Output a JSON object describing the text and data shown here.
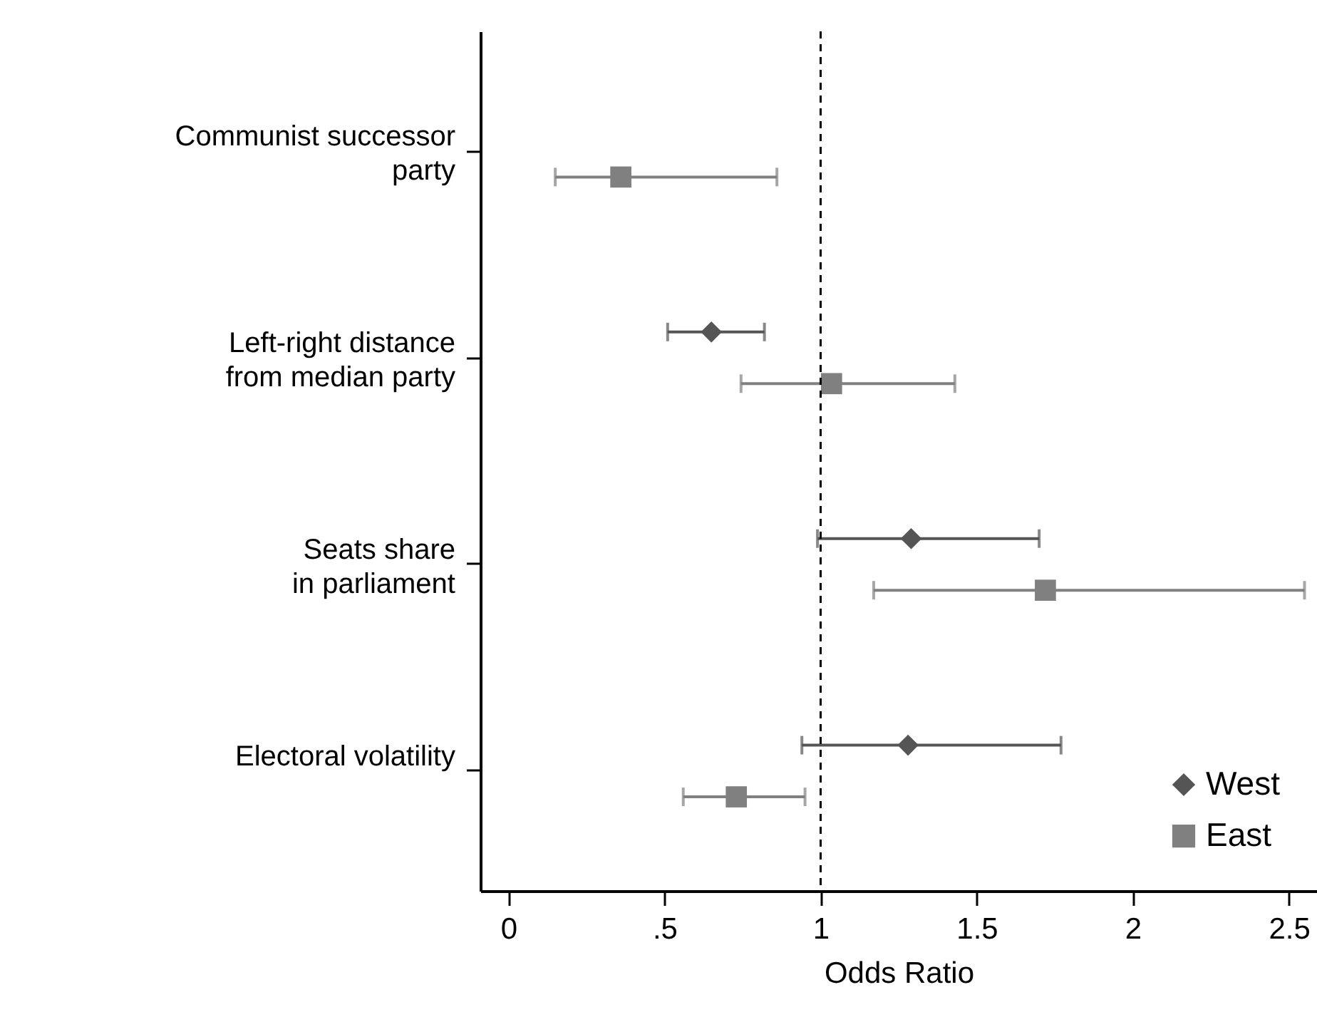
{
  "chart_data": {
    "type": "scatter",
    "orientation": "horizontal",
    "xlabel": "Odds Ratio",
    "categories": [
      "Communist successor\nparty",
      "Left-right distance\nfrom median party",
      "Seats share\nin parliament",
      "Electoral volatility"
    ],
    "series": [
      {
        "name": "West",
        "color": "#555555",
        "marker": "diamond",
        "values": [
          null,
          0.65,
          1.29,
          1.28
        ],
        "errors": [
          null,
          [
            0.51,
            0.82
          ],
          [
            0.99,
            1.7
          ],
          [
            0.94,
            1.77
          ]
        ]
      },
      {
        "name": "East",
        "color": "#808080",
        "marker": "square",
        "values": [
          0.36,
          1.035,
          1.72,
          0.73
        ],
        "errors": [
          [
            0.15,
            0.86
          ],
          [
            0.745,
            1.43
          ],
          [
            1.17,
            2.55
          ],
          [
            0.56,
            0.95
          ]
        ]
      }
    ],
    "xlim": [
      -0.09,
      2.59
    ],
    "xticks": [
      0,
      {
        "value": 0.5,
        "label": ".5"
      },
      1,
      1.5,
      2,
      2.5
    ],
    "ref_lines": [
      {
        "axis": "x",
        "value": 1,
        "color": "#000000",
        "line_style": "dashed"
      }
    ],
    "grid": false,
    "legend": "bottom right"
  }
}
